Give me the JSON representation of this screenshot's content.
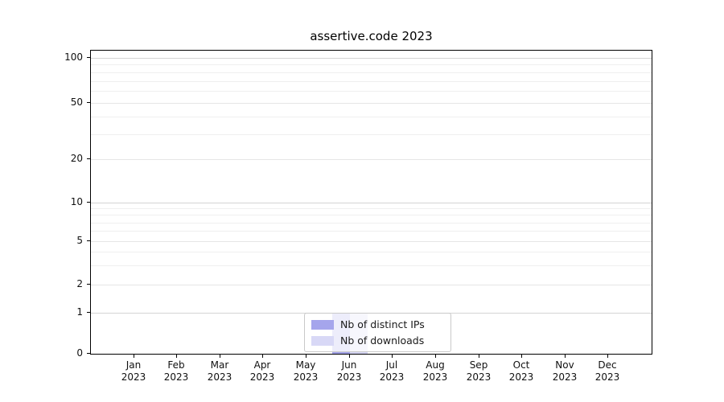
{
  "title": "assertive.code 2023",
  "chart_data": {
    "type": "bar",
    "title": "assertive.code 2023",
    "categories": [
      "Jan\n2023",
      "Feb\n2023",
      "Mar\n2023",
      "Apr\n2023",
      "May\n2023",
      "Jun\n2023",
      "Jul\n2023",
      "Aug\n2023",
      "Sep\n2023",
      "Oct\n2023",
      "Nov\n2023",
      "Dec\n2023"
    ],
    "series": [
      {
        "name": "Nb of distinct IPs",
        "color": "#a5a5ec",
        "values": [
          0,
          0,
          0,
          0,
          0,
          1,
          0,
          0,
          0,
          0,
          0,
          0
        ]
      },
      {
        "name": "Nb of downloads",
        "color": "#d8d8f6",
        "values": [
          0,
          0,
          0,
          0,
          0,
          1,
          0,
          0,
          0,
          0,
          0,
          0
        ]
      }
    ],
    "xlabel": "",
    "ylabel": "",
    "yscale": "symlog",
    "y_major_ticks": [
      0,
      1,
      2,
      5,
      10,
      20,
      50,
      100
    ],
    "y_minor_ticks": [
      3,
      4,
      6,
      7,
      8,
      9,
      30,
      40,
      60,
      70,
      80,
      90
    ],
    "ylim": [
      0,
      110
    ],
    "grid": true,
    "legend_position": "lower center"
  }
}
